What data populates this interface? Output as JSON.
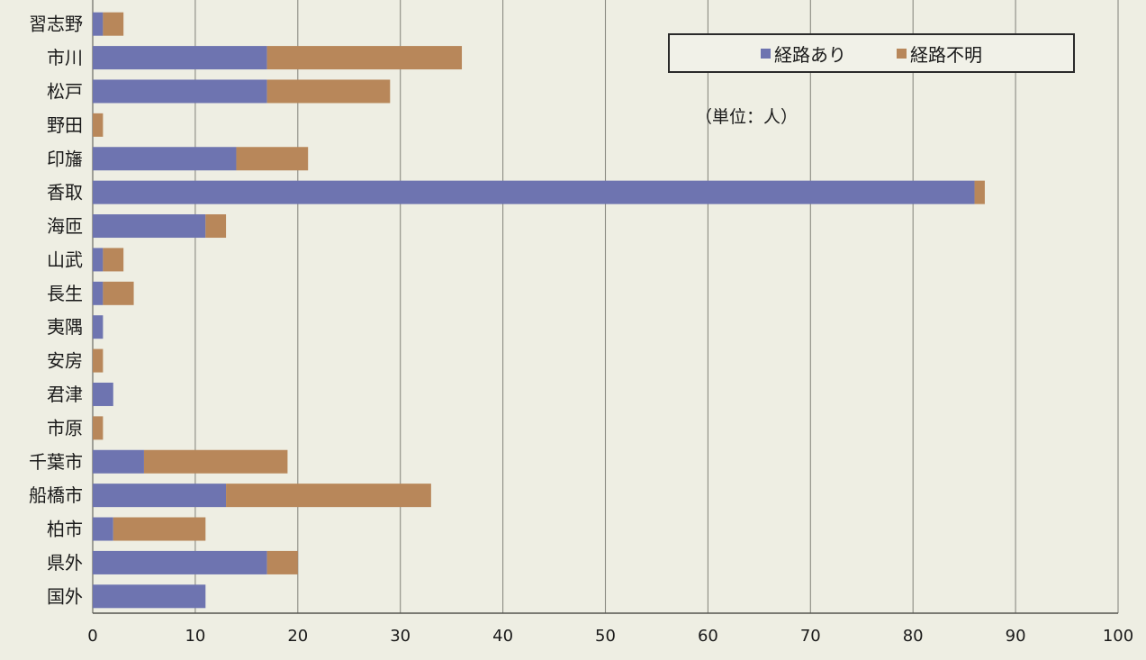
{
  "chart_data": {
    "type": "bar",
    "orientation": "horizontal",
    "stacked": true,
    "unit_note": "（単位：人）",
    "categories": [
      "習志野",
      "市川",
      "松戸",
      "野田",
      "印旛",
      "香取",
      "海匝",
      "山武",
      "長生",
      "夷隅",
      "安房",
      "君津",
      "市原",
      "千葉市",
      "船橋市",
      "柏市",
      "県外",
      "国外"
    ],
    "series": [
      {
        "name": "経路あり",
        "color": "#6e74b0",
        "values": [
          1,
          17,
          17,
          0,
          14,
          86,
          11,
          1,
          1,
          1,
          0,
          2,
          0,
          5,
          13,
          2,
          17,
          11
        ]
      },
      {
        "name": "経路不明",
        "color": "#b8875a",
        "values": [
          2,
          19,
          12,
          1,
          7,
          1,
          2,
          2,
          3,
          0,
          1,
          0,
          1,
          14,
          20,
          9,
          3,
          0
        ]
      }
    ],
    "xticks": [
      "0",
      "10",
      "20",
      "30",
      "40",
      "50",
      "60",
      "70",
      "80",
      "90",
      "100"
    ],
    "xlim": [
      0,
      100
    ],
    "grid": true,
    "legend_position": "top-right"
  }
}
